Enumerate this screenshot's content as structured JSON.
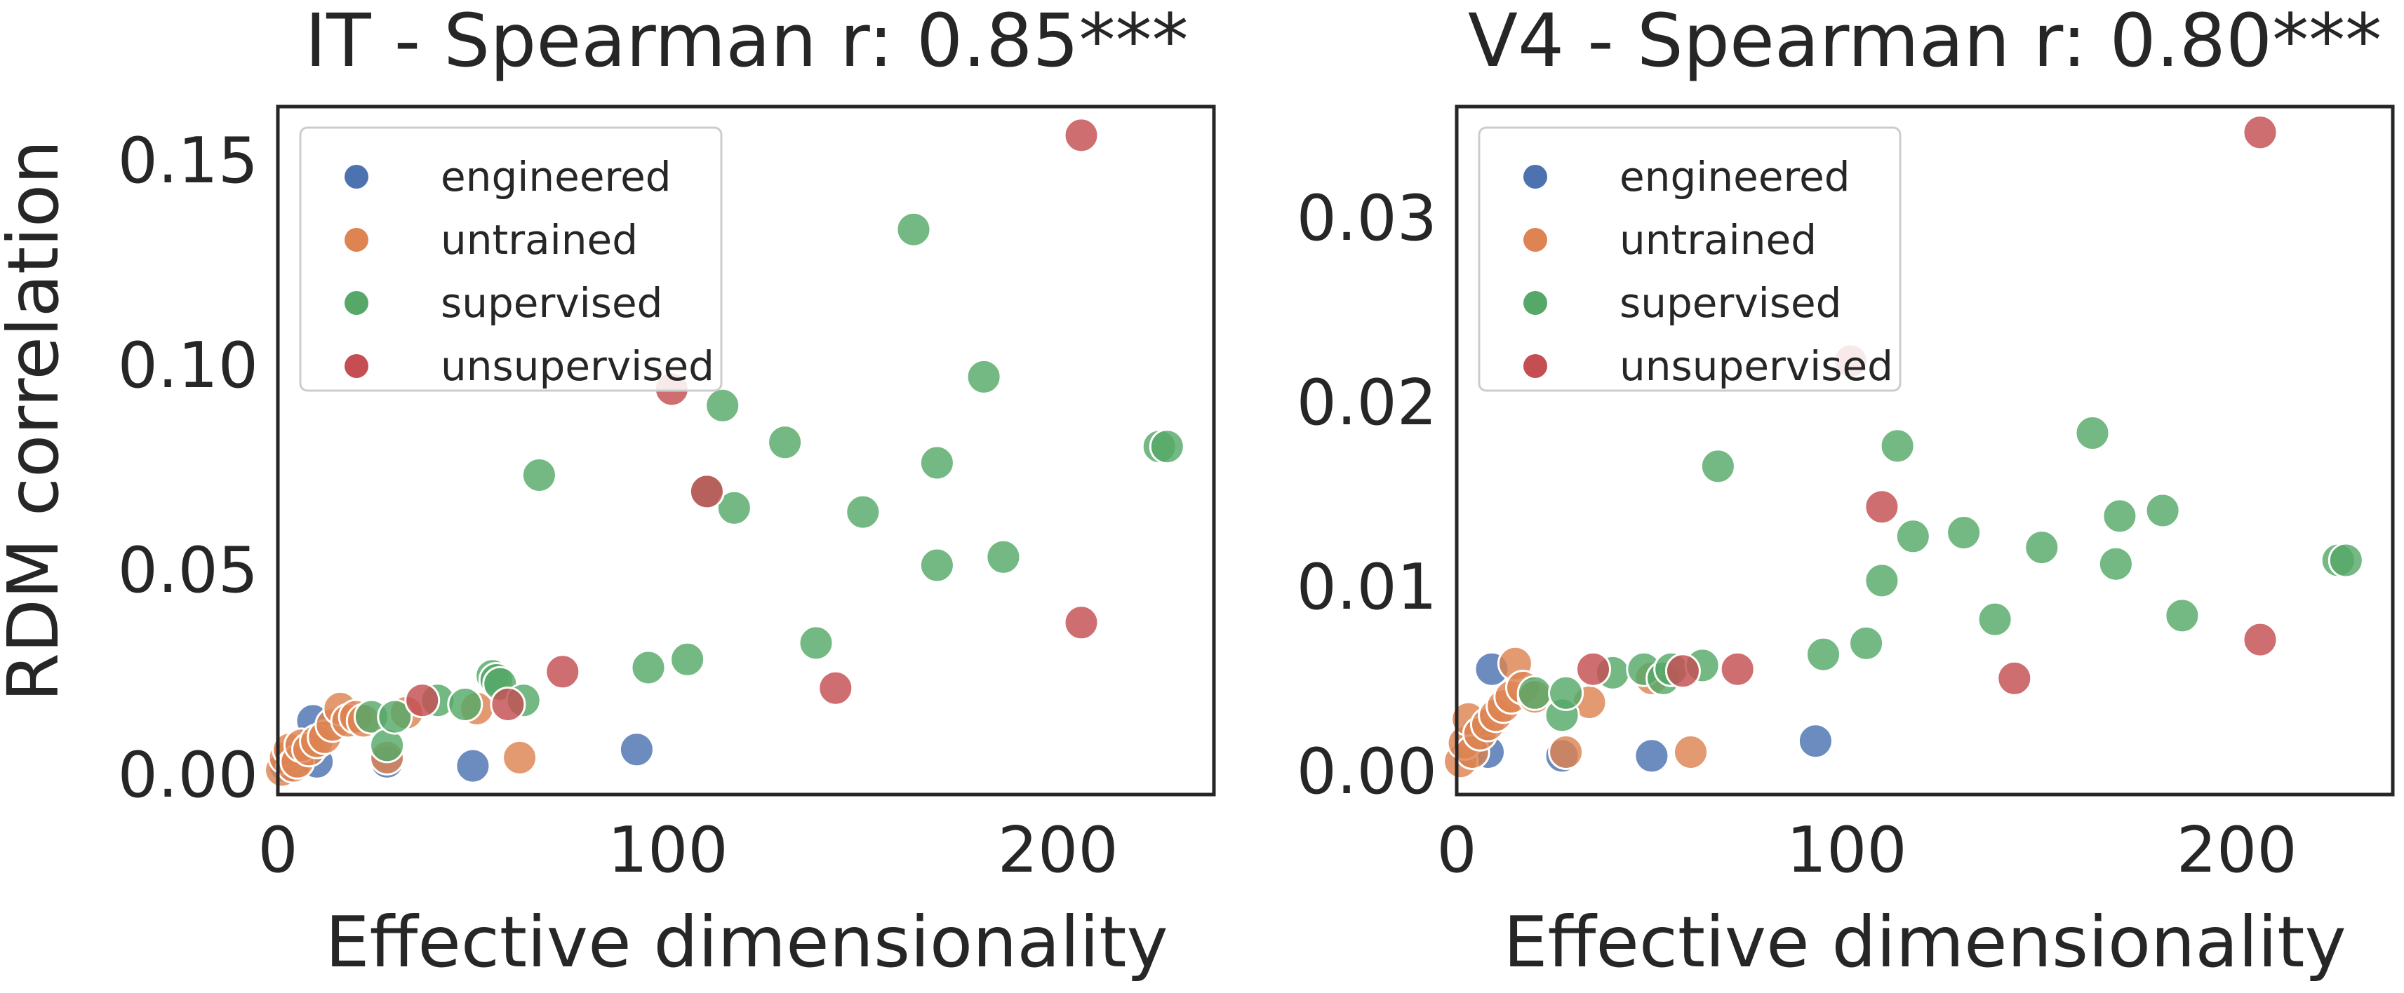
{
  "colors": {
    "engineered": "#4c72b0",
    "untrained": "#dd8452",
    "supervised": "#55a868",
    "unsupervised": "#c44e52"
  },
  "chart_data": [
    {
      "type": "scatter",
      "title": "IT - Spearman r: 0.85***",
      "xlabel": "Effective dimensionality",
      "ylabel": "RDM correlation",
      "xlim": [
        0,
        240
      ],
      "ylim": [
        -0.005,
        0.163
      ],
      "xticks": [
        0,
        100,
        200
      ],
      "xtick_labels": [
        "0",
        "100",
        "200"
      ],
      "yticks": [
        0.0,
        0.05,
        0.1,
        0.15
      ],
      "ytick_labels": [
        "0.00",
        "0.05",
        "0.10",
        "0.15"
      ],
      "grid": false,
      "legend_position": "top-left",
      "legend": [
        "engineered",
        "untrained",
        "supervised",
        "unsupervised"
      ],
      "series": [
        {
          "name": "engineered",
          "points": [
            [
              2,
              0.002
            ],
            [
              5,
              0.004
            ],
            [
              8,
              0.007
            ],
            [
              9,
              0.013
            ],
            [
              10,
              0.003
            ],
            [
              28,
              0.003
            ],
            [
              50,
              0.002
            ],
            [
              92,
              0.006
            ]
          ]
        },
        {
          "name": "untrained",
          "points": [
            [
              1,
              0.001
            ],
            [
              2,
              0.004
            ],
            [
              3,
              0.006
            ],
            [
              4,
              0.002
            ],
            [
              5,
              0.003
            ],
            [
              6,
              0.007
            ],
            [
              8,
              0.006
            ],
            [
              10,
              0.008
            ],
            [
              12,
              0.009
            ],
            [
              14,
              0.012
            ],
            [
              16,
              0.016
            ],
            [
              18,
              0.013
            ],
            [
              20,
              0.014
            ],
            [
              22,
              0.013
            ],
            [
              28,
              0.004
            ],
            [
              33,
              0.015
            ],
            [
              51,
              0.016
            ],
            [
              62,
              0.004
            ]
          ]
        },
        {
          "name": "supervised",
          "points": [
            [
              24,
              0.014
            ],
            [
              28,
              0.007
            ],
            [
              30,
              0.014
            ],
            [
              41,
              0.018
            ],
            [
              48,
              0.017
            ],
            [
              55,
              0.024
            ],
            [
              56,
              0.023
            ],
            [
              57,
              0.022
            ],
            [
              63,
              0.018
            ],
            [
              67,
              0.073
            ],
            [
              95,
              0.026
            ],
            [
              105,
              0.028
            ],
            [
              110,
              0.069
            ],
            [
              114,
              0.09
            ],
            [
              117,
              0.065
            ],
            [
              130,
              0.081
            ],
            [
              138,
              0.032
            ],
            [
              150,
              0.064
            ],
            [
              163,
              0.133
            ],
            [
              169,
              0.051
            ],
            [
              169,
              0.076
            ],
            [
              181,
              0.097
            ],
            [
              186,
              0.053
            ],
            [
              226,
              0.08
            ],
            [
              228,
              0.08
            ]
          ]
        },
        {
          "name": "unsupervised",
          "points": [
            [
              37,
              0.018
            ],
            [
              59,
              0.017
            ],
            [
              73,
              0.025
            ],
            [
              101,
              0.094
            ],
            [
              110,
              0.069
            ],
            [
              143,
              0.021
            ],
            [
              206,
              0.037
            ],
            [
              206,
              0.156
            ]
          ]
        }
      ]
    },
    {
      "type": "scatter",
      "title": "V4 - Spearman r: 0.80***",
      "xlabel": "Effective dimensionality",
      "ylabel": "",
      "xlim": [
        0,
        240
      ],
      "ylim": [
        -0.0013,
        0.036
      ],
      "xticks": [
        0,
        100,
        200
      ],
      "xtick_labels": [
        "0",
        "100",
        "200"
      ],
      "yticks": [
        0.0,
        0.01,
        0.02,
        0.03
      ],
      "ytick_labels": [
        "0.00",
        "0.01",
        "0.02",
        "0.03"
      ],
      "grid": false,
      "legend_position": "top-left",
      "legend": [
        "engineered",
        "untrained",
        "supervised",
        "unsupervised"
      ],
      "series": [
        {
          "name": "engineered",
          "points": [
            [
              3,
              0.001
            ],
            [
              5,
              0.002
            ],
            [
              8,
              0.001
            ],
            [
              9,
              0.0055
            ],
            [
              27,
              0.0008
            ],
            [
              50,
              0.0008
            ],
            [
              92,
              0.0016
            ]
          ]
        },
        {
          "name": "untrained",
          "points": [
            [
              1,
              0.0005
            ],
            [
              2,
              0.0015
            ],
            [
              3,
              0.0028
            ],
            [
              4,
              0.001
            ],
            [
              6,
              0.002
            ],
            [
              8,
              0.0025
            ],
            [
              10,
              0.003
            ],
            [
              12,
              0.0035
            ],
            [
              14,
              0.004
            ],
            [
              15,
              0.0058
            ],
            [
              17,
              0.0045
            ],
            [
              20,
              0.004
            ],
            [
              28,
              0.001
            ],
            [
              34,
              0.0037
            ],
            [
              50,
              0.005
            ],
            [
              60,
              0.001
            ]
          ]
        },
        {
          "name": "supervised",
          "points": [
            [
              20,
              0.0042
            ],
            [
              27,
              0.003
            ],
            [
              28,
              0.0042
            ],
            [
              40,
              0.0053
            ],
            [
              48,
              0.0055
            ],
            [
              53,
              0.005
            ],
            [
              55,
              0.0055
            ],
            [
              63,
              0.0057
            ],
            [
              67,
              0.0165
            ],
            [
              94,
              0.0063
            ],
            [
              105,
              0.0069
            ],
            [
              109,
              0.0103
            ],
            [
              113,
              0.0176
            ],
            [
              117,
              0.0127
            ],
            [
              130,
              0.0129
            ],
            [
              138,
              0.0082
            ],
            [
              150,
              0.0121
            ],
            [
              163,
              0.0183
            ],
            [
              169,
              0.0112
            ],
            [
              170,
              0.0138
            ],
            [
              181,
              0.0141
            ],
            [
              186,
              0.0084
            ],
            [
              226,
              0.0114
            ],
            [
              228,
              0.0114
            ]
          ]
        },
        {
          "name": "unsupervised",
          "points": [
            [
              35,
              0.0055
            ],
            [
              58,
              0.0054
            ],
            [
              72,
              0.0055
            ],
            [
              101,
              0.0222
            ],
            [
              109,
              0.0143
            ],
            [
              143,
              0.005
            ],
            [
              206,
              0.0071
            ],
            [
              206,
              0.0346
            ]
          ]
        }
      ]
    }
  ]
}
